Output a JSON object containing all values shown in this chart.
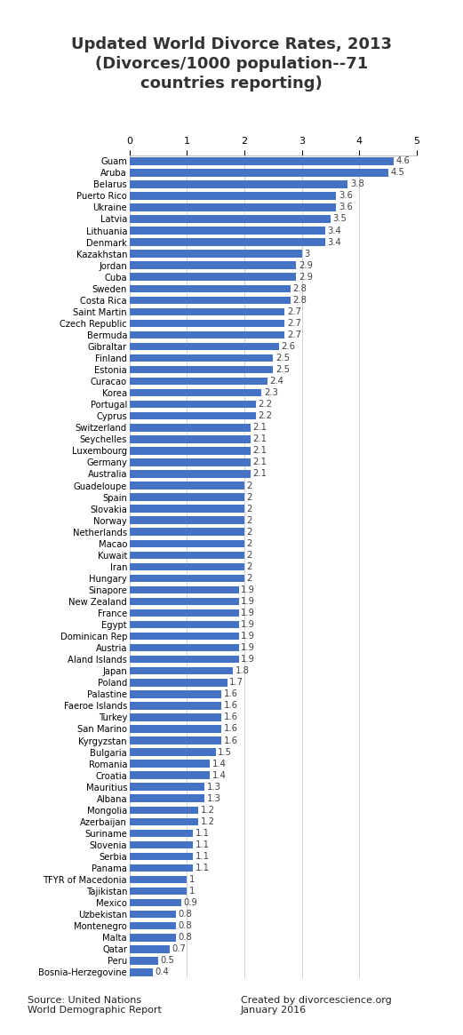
{
  "title": "Updated World Divorce Rates, 2013\n(Divorces/1000 population--71\ncountries reporting)",
  "countries": [
    "Guam",
    "Aruba",
    "Belarus",
    "Puerto Rico",
    "Ukraine",
    "Latvia",
    "Lithuania",
    "Denmark",
    "Kazakhstan",
    "Jordan",
    "Cuba",
    "Sweden",
    "Costa Rica",
    "Saint Martin",
    "Czech Republic",
    "Bermuda",
    "Gibraltar",
    "Finland",
    "Estonia",
    "Curacao",
    "Korea",
    "Portugal",
    "Cyprus",
    "Switzerland",
    "Seychelles",
    "Luxembourg",
    "Germany",
    "Australia",
    "Guadeloupe",
    "Spain",
    "Slovakia",
    "Norway",
    "Netherlands",
    "Macao",
    "Kuwait",
    "Iran",
    "Hungary",
    "Sinapore",
    "New Zealand",
    "France",
    "Egypt",
    "Dominican Rep",
    "Austria",
    "Aland Islands",
    "Japan",
    "Poland",
    "Palastine",
    "Faeroe Islands",
    "Turkey",
    "San Marino",
    "Kyrgyzstan",
    "Bulgaria",
    "Romania",
    "Croatia",
    "Mauritius",
    "Albana",
    "Mongolia",
    "Azerbaijan",
    "Suriname",
    "Slovenia",
    "Serbia",
    "Panama",
    "TFYR of Macedonia",
    "Tajikistan",
    "Mexico",
    "Uzbekistan",
    "Montenegro",
    "Malta",
    "Qatar",
    "Peru",
    "Bosnia-Herzegovine"
  ],
  "values": [
    4.6,
    4.5,
    3.8,
    3.6,
    3.6,
    3.5,
    3.4,
    3.4,
    3.0,
    2.9,
    2.9,
    2.8,
    2.8,
    2.7,
    2.7,
    2.7,
    2.6,
    2.5,
    2.5,
    2.4,
    2.3,
    2.2,
    2.2,
    2.1,
    2.1,
    2.1,
    2.1,
    2.1,
    2.0,
    2.0,
    2.0,
    2.0,
    2.0,
    2.0,
    2.0,
    2.0,
    2.0,
    1.9,
    1.9,
    1.9,
    1.9,
    1.9,
    1.9,
    1.9,
    1.8,
    1.7,
    1.6,
    1.6,
    1.6,
    1.6,
    1.6,
    1.5,
    1.4,
    1.4,
    1.3,
    1.3,
    1.2,
    1.2,
    1.1,
    1.1,
    1.1,
    1.1,
    1.0,
    1.0,
    0.9,
    0.8,
    0.8,
    0.8,
    0.7,
    0.5,
    0.4
  ],
  "bar_color": "#4472C4",
  "bg_color": "#FFFFFF",
  "xlim": [
    0,
    5
  ],
  "xticks": [
    0,
    1,
    2,
    3,
    4,
    5
  ],
  "source_left": "Source: United Nations\nWorld Demographic Report",
  "source_right": "Created by divorcescience.org\nJanuary 2016",
  "title_fontsize": 13,
  "label_fontsize": 7.2,
  "value_fontsize": 7.2,
  "tick_fontsize": 8,
  "footer_fontsize": 8
}
